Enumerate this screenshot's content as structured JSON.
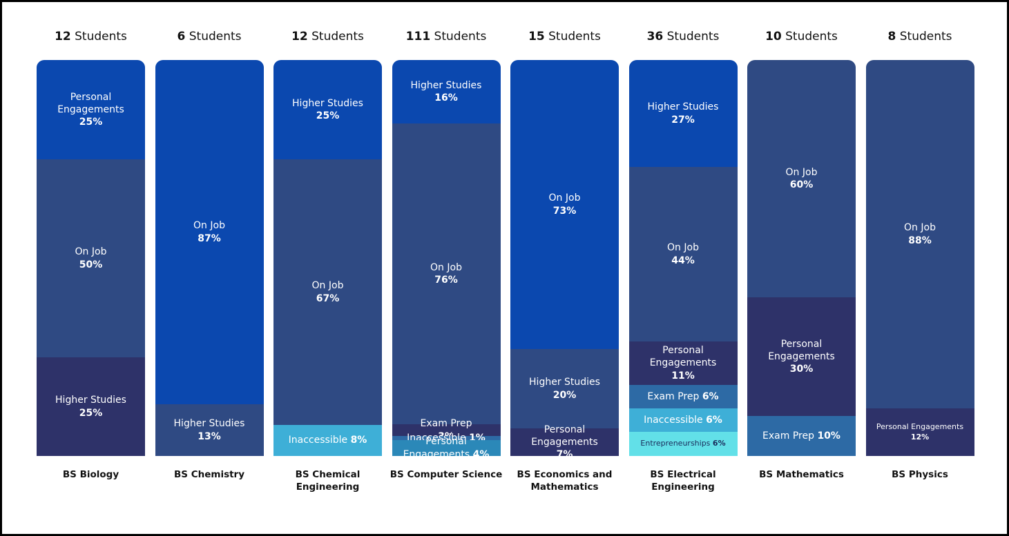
{
  "chart_data": {
    "type": "bar",
    "stacked": true,
    "normalized_percent": true,
    "count_suffix": "Students",
    "colors": {
      "On Job": "#2F4A83",
      "Higher Studies": "#0E48A8",
      "Personal Engagements": "#2E3269",
      "Exam Prep": "#2D6AA5",
      "Inaccessible": "#3EAFD7",
      "Entrepreneurships": "#62E0E8"
    },
    "programs": [
      {
        "name": "BS Biology",
        "students": "12",
        "segments": [
          {
            "label": "Personal Engagements",
            "value": 25,
            "text": "25%",
            "color": "#0B48AF"
          },
          {
            "label": "On Job",
            "value": 50,
            "text": "50%",
            "color": "#2F4A83"
          },
          {
            "label": "Higher Studies",
            "value": 25,
            "text": "25%",
            "color": "#2E3269"
          }
        ]
      },
      {
        "name": "BS Chemistry",
        "students": "6",
        "segments": [
          {
            "label": "On Job",
            "value": 87,
            "text": "87%",
            "color": "#0B48AF"
          },
          {
            "label": "Higher Studies",
            "value": 13,
            "text": "13%",
            "color": "#2F4A83"
          }
        ]
      },
      {
        "name": "BS Chemical Engineering",
        "students": "12",
        "segments": [
          {
            "label": "Higher Studies",
            "value": 25,
            "text": "25%",
            "color": "#0B48AF"
          },
          {
            "label": "On Job",
            "value": 67,
            "text": "67%",
            "color": "#2F4A83"
          },
          {
            "label": "Inaccessible",
            "value": 8,
            "text": "8%",
            "color": "#3EAFD7",
            "inline": true
          }
        ]
      },
      {
        "name": "BS Computer Science",
        "students": "111",
        "segments": [
          {
            "label": "Higher Studies",
            "value": 16,
            "text": "16%",
            "color": "#0B48AF"
          },
          {
            "label": "On Job",
            "value": 76,
            "text": "76%",
            "color": "#2F4A83"
          },
          {
            "label": "Exam Prep",
            "value": 3,
            "text": "3%",
            "color": "#2E3269"
          },
          {
            "label": "Inaccessible",
            "value": 1,
            "text": "1%",
            "color": "#2D6AA5",
            "inline": true
          },
          {
            "label": "Personal Engagements",
            "value": 4,
            "text": "4%",
            "color": "#2B88B8",
            "inline": true
          }
        ]
      },
      {
        "name": "BS Economics and Mathematics",
        "students": "15",
        "segments": [
          {
            "label": "On Job",
            "value": 73,
            "text": "73%",
            "color": "#0B48AF"
          },
          {
            "label": "Higher Studies",
            "value": 20,
            "text": "20%",
            "color": "#2F4A83"
          },
          {
            "label": "Personal Engagements",
            "value": 7,
            "text": "7%",
            "color": "#2E3269"
          }
        ]
      },
      {
        "name": "BS Electrical Engineering",
        "students": "36",
        "segments": [
          {
            "label": "Higher Studies",
            "value": 27,
            "text": "27%",
            "color": "#0B48AF"
          },
          {
            "label": "On Job",
            "value": 44,
            "text": "44%",
            "color": "#2F4A83"
          },
          {
            "label": "Personal Engagements",
            "value": 11,
            "text": "11%",
            "color": "#2E3269"
          },
          {
            "label": "Exam Prep",
            "value": 6,
            "text": "6%",
            "color": "#2D6AA5",
            "inline": true
          },
          {
            "label": "Inaccessible",
            "value": 6,
            "text": "6%",
            "color": "#3EAFD7",
            "inline": true
          },
          {
            "label": "Entrepreneurships",
            "value": 6,
            "text": "6%",
            "color": "#62E0E8",
            "inline": true,
            "dark": true,
            "small": true
          }
        ]
      },
      {
        "name": "BS Mathematics",
        "students": "10",
        "segments": [
          {
            "label": "On Job",
            "value": 60,
            "text": "60%",
            "color": "#2F4A83"
          },
          {
            "label": "Personal Engagements",
            "value": 30,
            "text": "30%",
            "color": "#2E3269"
          },
          {
            "label": "Exam Prep",
            "value": 10,
            "text": "10%",
            "color": "#2D6AA5",
            "inline": true
          }
        ]
      },
      {
        "name": "BS Physics",
        "students": "8",
        "segments": [
          {
            "label": "On Job",
            "value": 88,
            "text": "88%",
            "color": "#2F4A83"
          },
          {
            "label": "Personal Engagements",
            "value": 12,
            "text": "12%",
            "color": "#2E3269",
            "small": true
          }
        ]
      }
    ]
  }
}
